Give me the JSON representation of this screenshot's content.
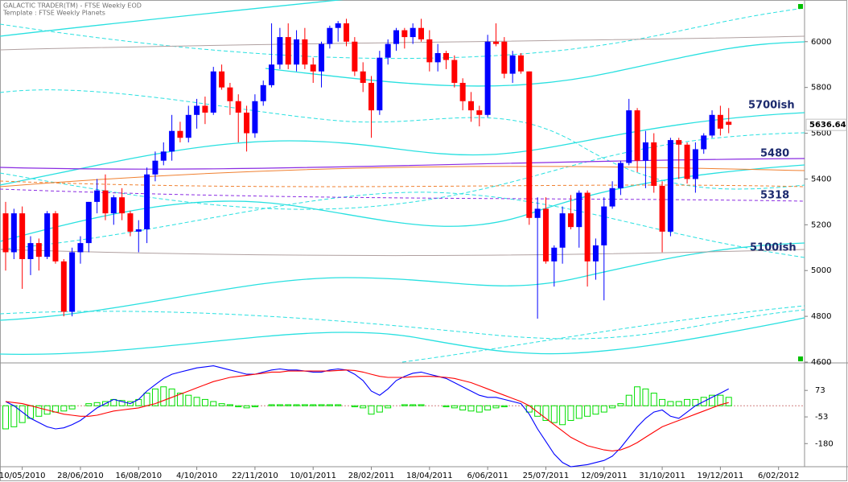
{
  "chart_data": [
    {
      "type": "candlestick",
      "title": "GALACTIC TRADER(TM) - FTSE Weekly EOD",
      "subtitle": "Template : FTSE Weekly Planets",
      "categories": [
        null,
        null,
        "10/05/2010",
        null,
        null,
        null,
        null,
        null,
        null,
        "28/06/2010",
        null,
        null,
        null,
        null,
        null,
        null,
        "16/08/2010",
        null,
        null,
        null,
        null,
        null,
        null,
        "4/10/2010",
        null,
        null,
        null,
        null,
        null,
        null,
        "22/11/2010",
        null,
        null,
        null,
        null,
        null,
        null,
        "10/01/2011",
        null,
        null,
        null,
        null,
        null,
        null,
        "28/02/2011",
        null,
        null,
        null,
        null,
        null,
        null,
        "18/04/2011",
        null,
        null,
        null,
        null,
        null,
        null,
        "6/06/2011",
        null,
        null,
        null,
        null,
        null,
        null,
        "25/07/2011",
        null,
        null,
        null,
        null,
        null,
        null,
        "12/09/2011",
        null,
        null,
        null,
        null,
        null,
        null,
        "31/10/2011",
        null,
        null,
        null,
        null,
        null,
        null,
        "19/12/2011",
        null,
        null,
        null,
        null,
        null,
        null,
        "6/02/2012"
      ],
      "open": [
        5250,
        5080,
        5250,
        5050,
        5120,
        5060,
        5250,
        5040,
        4820,
        5080,
        5120,
        5300,
        5350,
        5250,
        5320,
        5250,
        5170,
        5180,
        5420,
        5480,
        5520,
        5610,
        5580,
        5680,
        5720,
        5690,
        5870,
        5800,
        5740,
        5690,
        5600,
        5740,
        5810,
        5900,
        6020,
        5900,
        6010,
        5900,
        5870,
        5990,
        6060,
        6080,
        6000,
        5870,
        5820,
        5700,
        5930,
        5990,
        6050,
        6020,
        6060,
        6010,
        5910,
        5950,
        5920,
        5820,
        5740,
        5700,
        5680,
        6000,
        6000,
        5860,
        5940,
        5870,
        5230,
        5270,
        5040,
        5100,
        5250,
        5190,
        5340,
        5040,
        5110,
        5280,
        5360,
        5470,
        5700,
        5480,
        5560,
        5370,
        5170,
        5570,
        5550,
        5400,
        5530,
        5590,
        5680,
        5650,
        null,
        null,
        null,
        null,
        null,
        null
      ],
      "high": [
        5300,
        5270,
        5280,
        5150,
        5140,
        5260,
        5260,
        5050,
        5100,
        5150,
        5300,
        5400,
        5420,
        5330,
        5360,
        5260,
        5220,
        5450,
        5520,
        5560,
        5680,
        5650,
        5720,
        5750,
        5760,
        5890,
        5900,
        5820,
        5770,
        5720,
        5770,
        5830,
        6080,
        6060,
        6080,
        6050,
        6060,
        5930,
        6000,
        6070,
        6090,
        6100,
        6020,
        5910,
        5850,
        5960,
        6010,
        6060,
        6060,
        6080,
        6100,
        6050,
        5990,
        5960,
        5940,
        5840,
        5780,
        5720,
        6030,
        6080,
        6020,
        5960,
        5950,
        5870,
        5320,
        5320,
        5110,
        5280,
        5330,
        5350,
        5350,
        5140,
        5320,
        5390,
        5480,
        5750,
        5710,
        5610,
        5600,
        5390,
        5580,
        5580,
        5560,
        5560,
        5600,
        5700,
        5720,
        5710,
        null,
        null,
        null,
        null,
        null,
        null
      ],
      "low": [
        5000,
        5050,
        4920,
        4980,
        5000,
        5050,
        5030,
        4800,
        4800,
        5030,
        5080,
        5250,
        5220,
        5200,
        5220,
        5150,
        5080,
        5120,
        5390,
        5460,
        5480,
        5560,
        5560,
        5620,
        5640,
        5680,
        5790,
        5680,
        5560,
        5520,
        5580,
        5720,
        5800,
        5880,
        5880,
        5870,
        5880,
        5820,
        5800,
        5970,
        6000,
        5980,
        5850,
        5780,
        5580,
        5680,
        5900,
        5960,
        5970,
        5990,
        6000,
        5870,
        5870,
        5880,
        5800,
        5700,
        5650,
        5630,
        5670,
        5980,
        5840,
        5820,
        5860,
        5200,
        4790,
        5030,
        4930,
        5030,
        5180,
        5100,
        4930,
        4960,
        4870,
        5270,
        5330,
        5460,
        5430,
        5360,
        5340,
        5080,
        5150,
        5400,
        5380,
        5340,
        5510,
        5580,
        5590,
        5600,
        null,
        null,
        null,
        null,
        null,
        null
      ],
      "close": [
        5080,
        5250,
        5050,
        5120,
        5060,
        5250,
        5040,
        4820,
        5080,
        5120,
        5300,
        5350,
        5250,
        5320,
        5250,
        5170,
        5180,
        5420,
        5480,
        5520,
        5610,
        5580,
        5680,
        5720,
        5690,
        5870,
        5800,
        5740,
        5690,
        5600,
        5740,
        5810,
        5900,
        6020,
        5900,
        6010,
        5900,
        5870,
        5990,
        6060,
        6080,
        6000,
        5870,
        5820,
        5700,
        5930,
        5990,
        6050,
        6020,
        6060,
        6010,
        5910,
        5950,
        5920,
        5820,
        5740,
        5700,
        5680,
        6000,
        5990,
        5860,
        5940,
        5870,
        5230,
        5270,
        5040,
        5100,
        5250,
        5190,
        5340,
        5040,
        5110,
        5280,
        5360,
        5470,
        5700,
        5480,
        5560,
        5370,
        5170,
        5570,
        5550,
        5400,
        5530,
        5590,
        5680,
        5620,
        5636.64,
        null,
        null,
        null,
        null,
        null,
        null
      ],
      "up_color": "#0000ff",
      "down_color": "#ff0000",
      "last_price": 5636.64,
      "annotations": [
        "5700ish",
        "5480",
        "5318",
        "5100ish"
      ],
      "ylim": [
        4600,
        6175
      ],
      "yticks": [
        4600,
        4800,
        5000,
        5200,
        5400,
        5600,
        5800,
        6000
      ]
    },
    {
      "type": "oscillator",
      "histogram": {
        "color": "#00e000",
        "values": [
          -110,
          -100,
          -80,
          -60,
          -50,
          -40,
          -30,
          -25,
          -15,
          0,
          10,
          15,
          20,
          30,
          25,
          20,
          30,
          60,
          80,
          90,
          80,
          60,
          50,
          40,
          30,
          20,
          10,
          5,
          -5,
          -10,
          -5,
          0,
          5,
          5,
          5,
          5,
          5,
          5,
          5,
          5,
          5,
          0,
          -5,
          -10,
          -40,
          -30,
          -10,
          0,
          5,
          5,
          5,
          0,
          0,
          -5,
          -10,
          -20,
          -25,
          -30,
          -20,
          -10,
          -5,
          0,
          0,
          -30,
          -50,
          -70,
          -80,
          -90,
          -70,
          -60,
          -50,
          -40,
          -30,
          -10,
          10,
          50,
          90,
          80,
          60,
          30,
          20,
          20,
          30,
          30,
          40,
          50,
          50,
          40,
          null,
          null,
          null,
          null,
          null,
          null
        ]
      },
      "lines": [
        {
          "color": "#0000ff",
          "values": [
            20,
            0,
            -30,
            -60,
            -80,
            -100,
            -110,
            -105,
            -90,
            -70,
            -40,
            -10,
            10,
            30,
            20,
            10,
            30,
            70,
            100,
            130,
            150,
            160,
            170,
            180,
            185,
            190,
            180,
            170,
            160,
            150,
            150,
            160,
            170,
            175,
            170,
            170,
            165,
            160,
            160,
            170,
            175,
            170,
            150,
            120,
            70,
            50,
            80,
            120,
            140,
            155,
            160,
            150,
            140,
            130,
            110,
            90,
            70,
            50,
            40,
            40,
            30,
            20,
            10,
            -40,
            -110,
            -170,
            -230,
            -270,
            -290,
            -285,
            -280,
            -270,
            -260,
            -240,
            -200,
            -150,
            -100,
            -60,
            -30,
            -20,
            -50,
            -60,
            -30,
            0,
            20,
            40,
            60,
            80,
            null,
            null,
            null,
            null,
            null,
            null
          ]
        },
        {
          "color": "#ff0000",
          "values": [
            20,
            15,
            10,
            0,
            -10,
            -20,
            -30,
            -40,
            -45,
            -50,
            -50,
            -45,
            -35,
            -25,
            -20,
            -15,
            -10,
            0,
            10,
            25,
            40,
            55,
            70,
            85,
            100,
            115,
            125,
            135,
            140,
            145,
            150,
            155,
            160,
            160,
            165,
            165,
            165,
            165,
            165,
            165,
            168,
            170,
            168,
            160,
            150,
            140,
            135,
            135,
            135,
            138,
            140,
            140,
            138,
            135,
            130,
            120,
            110,
            95,
            80,
            65,
            50,
            35,
            20,
            0,
            -30,
            -60,
            -90,
            -120,
            -150,
            -170,
            -190,
            -200,
            -210,
            -215,
            -210,
            -195,
            -175,
            -150,
            -125,
            -100,
            -85,
            -70,
            -55,
            -40,
            -25,
            -10,
            5,
            15,
            null,
            null,
            null,
            null,
            null,
            null
          ]
        }
      ],
      "ylim": [
        -290,
        200
      ],
      "yticks": [
        -180,
        -53,
        73
      ]
    }
  ]
}
